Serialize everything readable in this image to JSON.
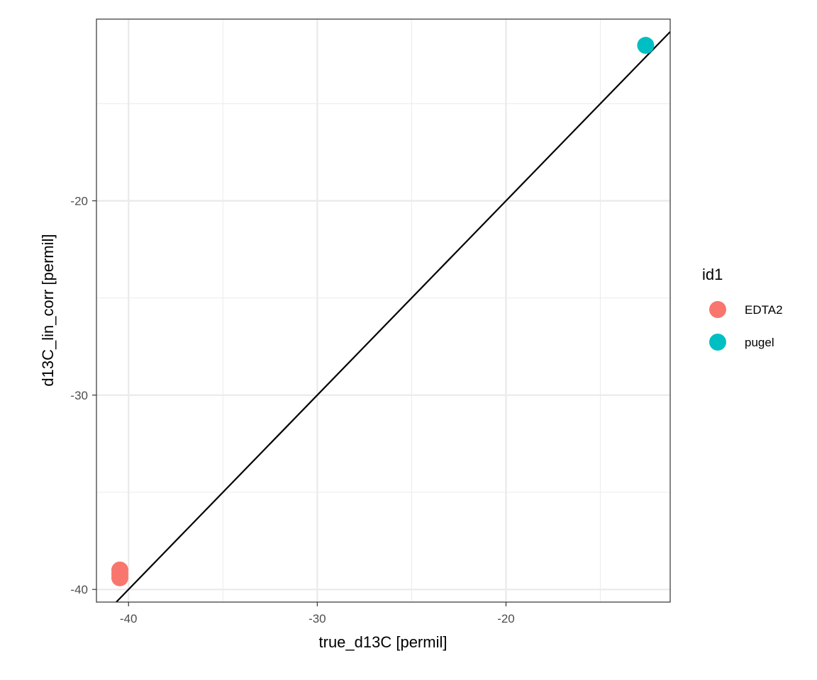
{
  "chart_data": {
    "type": "scatter",
    "xlabel": "true_d13C [permil]",
    "ylabel": "d13C_lin_corr [permil]",
    "xlim": [
      -41.7,
      -11.3
    ],
    "ylim": [
      -40.65,
      -10.65
    ],
    "x_ticks": [
      -40,
      -30,
      -20
    ],
    "x_tick_labels": [
      "-40",
      "-30",
      "-20"
    ],
    "y_ticks": [
      -40,
      -30,
      -20
    ],
    "y_tick_labels": [
      "-40",
      "-30",
      "-20"
    ],
    "x_minor_gridlines": [
      -35,
      -25,
      -15
    ],
    "y_minor_gridlines": [
      -35,
      -25,
      -15
    ],
    "grid": true,
    "legend": {
      "title": "id1",
      "position": "right"
    },
    "series": [
      {
        "name": "EDTA2",
        "color": "#F8766D",
        "points": [
          {
            "x": -40.46,
            "y": -39.0
          },
          {
            "x": -40.46,
            "y": -39.2
          },
          {
            "x": -40.46,
            "y": -39.4
          }
        ]
      },
      {
        "name": "pugel",
        "color": "#00BFC4",
        "points": [
          {
            "x": -12.6,
            "y": -12.0
          }
        ]
      }
    ],
    "reference_line": {
      "type": "identity",
      "slope": 1,
      "intercept": 0,
      "color": "#000000"
    }
  }
}
